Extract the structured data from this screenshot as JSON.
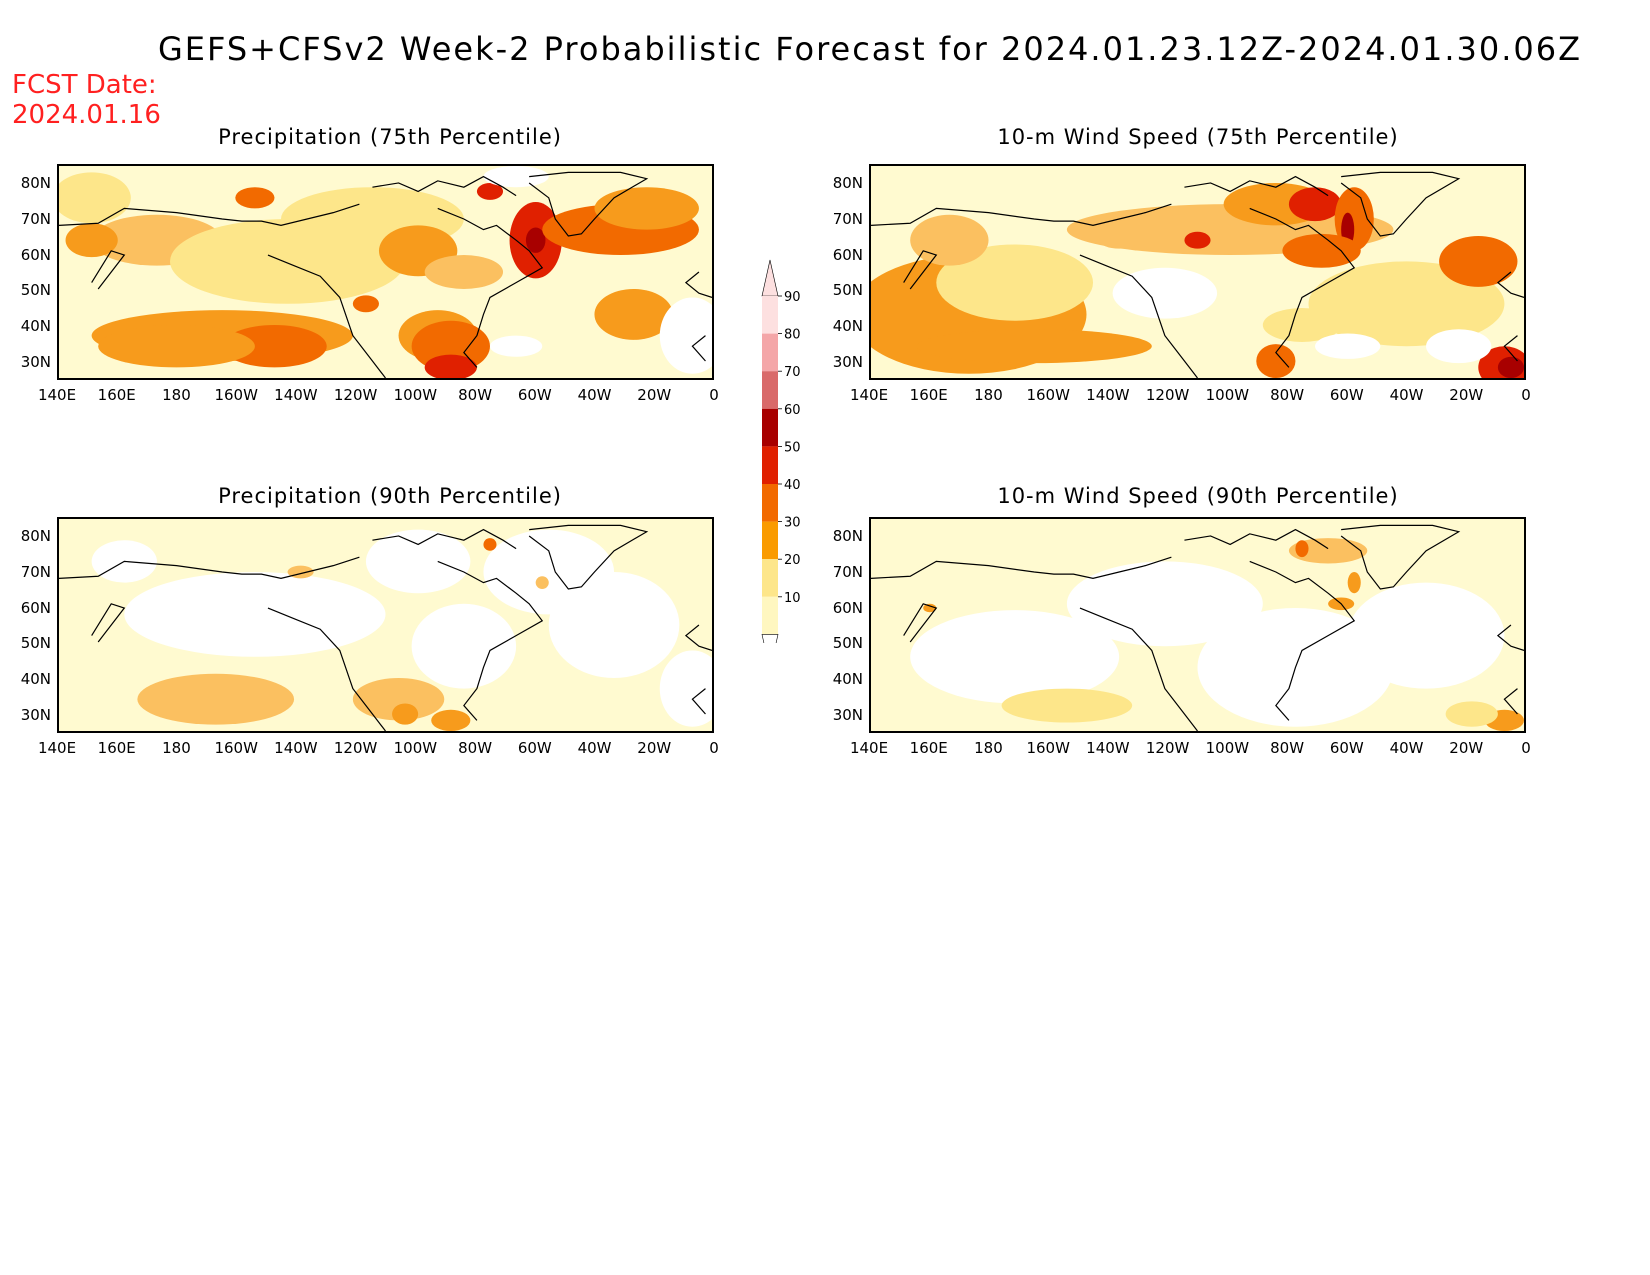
{
  "header": {
    "title": "GEFS+CFSv2 Week-2 Probabilistic Forecast for 2024.01.23.12Z-2024.01.30.06Z",
    "fcst_label": "FCST Date:",
    "fcst_date": "2024.01.16"
  },
  "panels": [
    {
      "title": "Precipitation (75th Percentile)"
    },
    {
      "title": "10-m Wind Speed (75th Percentile)"
    },
    {
      "title": "Precipitation (90th Percentile)"
    },
    {
      "title": "10-m Wind Speed (90th Percentile)"
    }
  ],
  "axes": {
    "lat_labels": [
      "80N",
      "70N",
      "60N",
      "50N",
      "40N",
      "30N"
    ],
    "lon_labels": [
      "140E",
      "160E",
      "180",
      "160W",
      "140W",
      "120W",
      "100W",
      "80W",
      "60W",
      "40W",
      "20W",
      "0"
    ]
  },
  "colorbar": {
    "levels": [
      "90",
      "80",
      "70",
      "60",
      "50",
      "40",
      "30",
      "20",
      "10"
    ],
    "colors": [
      "#fde0e0",
      "#f4a6a8",
      "#d96a6a",
      "#a80000",
      "#e02000",
      "#f26a00",
      "#fa9b00",
      "#fde68a",
      "#fff7c0"
    ]
  },
  "colors": {
    "bg_field": "#fffad0",
    "low": "#fde68a",
    "mid": "#fbc060",
    "high": "#f79b1c",
    "very_high": "#f26a00",
    "extreme": "#e02000",
    "title_red": "#ff2020"
  }
}
